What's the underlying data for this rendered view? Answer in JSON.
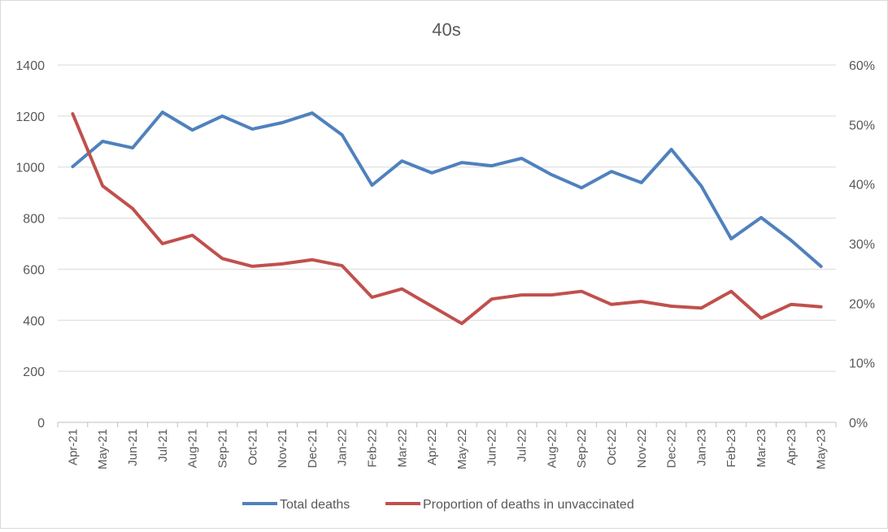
{
  "chart_data": {
    "type": "line",
    "title": "40s",
    "categories": [
      "Apr-21",
      "May-21",
      "Jun-21",
      "Jul-21",
      "Aug-21",
      "Sep-21",
      "Oct-21",
      "Nov-21",
      "Dec-21",
      "Jan-22",
      "Feb-22",
      "Mar-22",
      "Apr-22",
      "May-22",
      "Jun-22",
      "Jul-22",
      "Aug-22",
      "Sep-22",
      "Oct-22",
      "Nov-22",
      "Dec-22",
      "Jan-23",
      "Feb-23",
      "Mar-23",
      "Apr-23",
      "May-23"
    ],
    "y_left": {
      "min": 0,
      "max": 1400,
      "step": 200,
      "ticks": [
        "0",
        "200",
        "400",
        "600",
        "800",
        "1000",
        "1200",
        "1400"
      ]
    },
    "y_right": {
      "min": 0,
      "max": 0.6,
      "step": 0.1,
      "ticks": [
        "0%",
        "10%",
        "20%",
        "30%",
        "40%",
        "50%",
        "60%"
      ]
    },
    "grid": true,
    "legend_position": "bottom",
    "series": [
      {
        "name": "Total deaths",
        "axis": "left",
        "color": "#4f81bd",
        "values": [
          1002,
          1101,
          1075,
          1215,
          1145,
          1200,
          1149,
          1174,
          1212,
          1126,
          929,
          1024,
          977,
          1018,
          1005,
          1034,
          970,
          919,
          983,
          939,
          1069,
          926,
          719,
          802,
          713,
          611
        ]
      },
      {
        "name": "Proportion of deaths in unvaccinated",
        "axis": "right",
        "color": "#c0504d",
        "values": [
          0.518,
          0.397,
          0.359,
          0.3,
          0.314,
          0.275,
          0.262,
          0.266,
          0.273,
          0.263,
          0.21,
          0.224,
          0.195,
          0.166,
          0.207,
          0.214,
          0.214,
          0.22,
          0.198,
          0.203,
          0.195,
          0.192,
          0.22,
          0.175,
          0.198,
          0.194
        ]
      }
    ]
  }
}
